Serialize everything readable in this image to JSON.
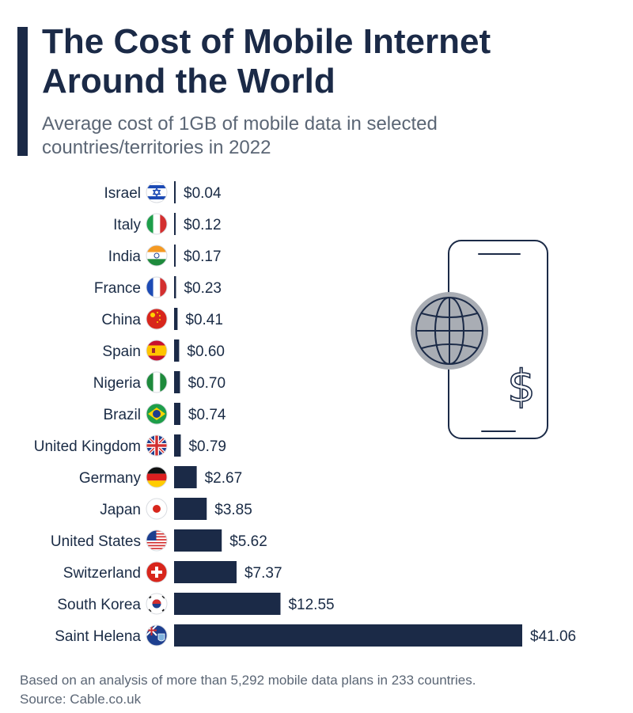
{
  "header": {
    "title_line1": "The Cost of Mobile Internet",
    "title_line2": "Around the World",
    "subtitle_line1": "Average cost of 1GB of mobile data in selected",
    "subtitle_line2": "countries/territories in 2022"
  },
  "footer": {
    "note": "Based on an analysis of more than 5,292 mobile data plans in 233 countries.",
    "source": "Source: Cable.co.uk"
  },
  "colors": {
    "bar": "#1b2a47",
    "text": "#1a2b45",
    "muted": "#5b6675"
  },
  "illustration": {
    "icons": [
      "smartphone-icon",
      "globe-icon",
      "dollar-sign-icon"
    ],
    "dollar_glyph": "$"
  },
  "chart_data": {
    "type": "bar",
    "orientation": "horizontal",
    "title": "The Cost of Mobile Internet Around the World",
    "subtitle": "Average cost of 1GB of mobile data in selected countries/territories in 2022",
    "categories": [
      "Israel",
      "Italy",
      "India",
      "France",
      "China",
      "Spain",
      "Nigeria",
      "Brazil",
      "United Kingdom",
      "Germany",
      "Japan",
      "United States",
      "Switzerland",
      "South Korea",
      "Saint Helena"
    ],
    "values": [
      0.04,
      0.12,
      0.17,
      0.23,
      0.41,
      0.6,
      0.7,
      0.74,
      0.79,
      2.67,
      3.85,
      5.62,
      7.37,
      12.55,
      41.06
    ],
    "value_labels": [
      "$0.04",
      "$0.12",
      "$0.17",
      "$0.23",
      "$0.41",
      "$0.60",
      "$0.70",
      "$0.74",
      "$0.79",
      "$2.67",
      "$3.85",
      "$5.62",
      "$7.37",
      "$12.55",
      "$41.06"
    ],
    "flag_icons": [
      "israel-flag-icon",
      "italy-flag-icon",
      "india-flag-icon",
      "france-flag-icon",
      "china-flag-icon",
      "spain-flag-icon",
      "nigeria-flag-icon",
      "brazil-flag-icon",
      "united-kingdom-flag-icon",
      "germany-flag-icon",
      "japan-flag-icon",
      "united-states-flag-icon",
      "switzerland-flag-icon",
      "south-korea-flag-icon",
      "saint-helena-flag-icon"
    ],
    "unit": "USD per 1GB",
    "xlim": [
      0,
      45
    ],
    "grid": false,
    "legend": "none"
  }
}
